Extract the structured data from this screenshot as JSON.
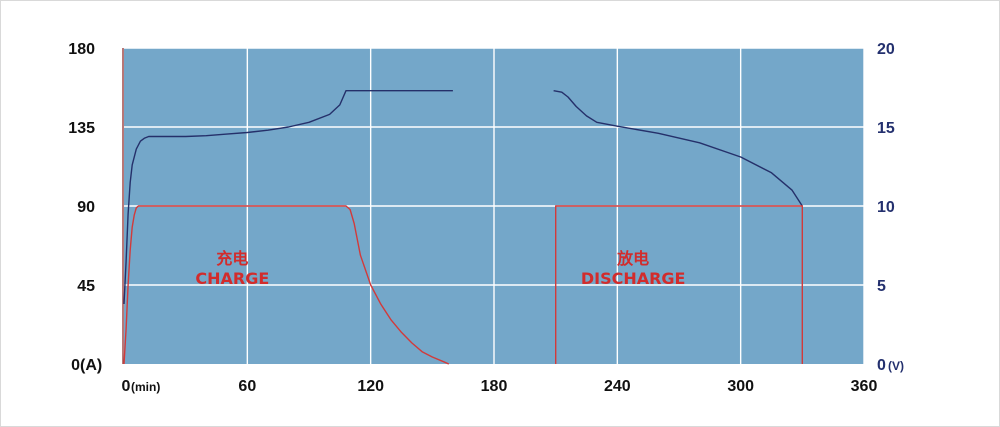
{
  "chart_data": {
    "type": "line",
    "x_axis": {
      "range": [
        0,
        360
      ],
      "ticks": [
        "0",
        "60",
        "120",
        "180",
        "240",
        "300",
        "360"
      ],
      "unit": "(min)"
    },
    "y_left_axis": {
      "range": [
        0,
        180
      ],
      "ticks": [
        "0",
        "45",
        "90",
        "135",
        "180"
      ],
      "unit": "(A)"
    },
    "y_right_axis": {
      "range": [
        0,
        20
      ],
      "ticks": [
        "0",
        "5",
        "10",
        "15",
        "20"
      ],
      "unit": "(V)"
    },
    "grid": true,
    "colors": {
      "plot_bg": "#74a7c9",
      "grid": "#ffffff",
      "current": "#d23a3a",
      "voltage": "#25306a",
      "left_axis": "#a04a4a",
      "left_text": "#111111",
      "right_text": "#23306e",
      "annotation": "#d22c2c"
    },
    "series": [
      {
        "axis": "right",
        "color": "#25306a",
        "segments": [
          [
            [
              0,
              3.8
            ],
            [
              1,
              6.5
            ],
            [
              2,
              9.5
            ],
            [
              3,
              11.5
            ],
            [
              4,
              12.6
            ],
            [
              6,
              13.6
            ],
            [
              8,
              14.1
            ],
            [
              10,
              14.3
            ],
            [
              12,
              14.4
            ],
            [
              20,
              14.4
            ],
            [
              30,
              14.4
            ],
            [
              40,
              14.45
            ],
            [
              50,
              14.55
            ],
            [
              60,
              14.65
            ],
            [
              70,
              14.8
            ],
            [
              80,
              15.0
            ],
            [
              90,
              15.3
            ],
            [
              100,
              15.8
            ],
            [
              105,
              16.4
            ],
            [
              108,
              17.3
            ],
            [
              120,
              17.3
            ],
            [
              140,
              17.3
            ],
            [
              160,
              17.3
            ]
          ],
          [
            [
              209,
              17.3
            ],
            [
              213,
              17.2
            ],
            [
              216,
              16.9
            ],
            [
              220,
              16.3
            ],
            [
              225,
              15.7
            ],
            [
              230,
              15.3
            ],
            [
              240,
              15.05
            ],
            [
              260,
              14.6
            ],
            [
              280,
              14.0
            ],
            [
              300,
              13.1
            ],
            [
              315,
              12.1
            ],
            [
              325,
              11.0
            ],
            [
              330,
              10.0
            ]
          ]
        ]
      },
      {
        "axis": "left",
        "color": "#d23a3a",
        "segments": [
          [
            [
              0,
              0
            ],
            [
              1,
              20
            ],
            [
              2,
              45
            ],
            [
              3,
              65
            ],
            [
              4,
              78
            ],
            [
              5,
              85
            ],
            [
              6,
              89
            ],
            [
              7,
              90
            ],
            [
              10,
              90
            ],
            [
              60,
              90
            ],
            [
              108,
              90
            ],
            [
              110,
              88
            ],
            [
              112,
              80
            ],
            [
              115,
              62
            ],
            [
              120,
              45
            ],
            [
              125,
              34
            ],
            [
              130,
              25
            ],
            [
              135,
              18
            ],
            [
              140,
              12
            ],
            [
              145,
              7
            ],
            [
              150,
              4
            ],
            [
              156,
              1
            ],
            [
              158,
              0
            ]
          ],
          [
            [
              210,
              0
            ],
            [
              210,
              90
            ],
            [
              330,
              90
            ],
            [
              330,
              0
            ]
          ]
        ]
      }
    ],
    "annotations": [
      {
        "label_cn": "充电",
        "label_en": "CHARGE",
        "x": 60,
        "y": 50
      },
      {
        "label_cn": "放电",
        "label_en": "DISCHARGE",
        "x": 255,
        "y": 50
      }
    ]
  }
}
